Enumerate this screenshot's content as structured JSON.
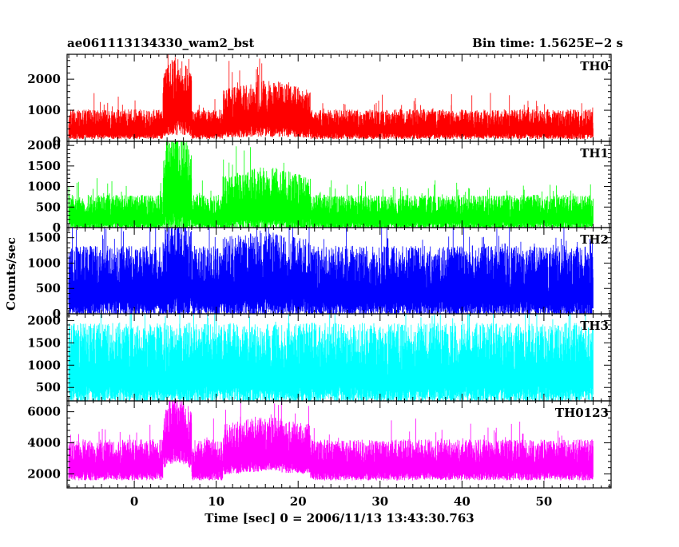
{
  "chart_data": {
    "type": "line",
    "title": "ae061113134330_wam2_bst",
    "subtitle": "Bin time: 1.5625E−2 s",
    "xlabel": "Time [sec] 0 = 2006/11/13 13:43:30.763",
    "ylabel": "Counts/sec",
    "xlim": [
      -8.2,
      58.2
    ],
    "x_ticks": [
      0,
      10,
      20,
      30,
      40,
      50
    ],
    "grid": false,
    "bin_time": 0.015625,
    "data_x_range": [
      -8,
      56
    ],
    "panels": [
      {
        "name": "TH0",
        "color": "#ff0000",
        "ylim": [
          0,
          2800
        ],
        "y_ticks": [
          0,
          1000,
          2000
        ],
        "noise": {
          "base_mean": 550,
          "base_spread": 800,
          "peak_max": 2800
        },
        "bursts": [
          {
            "x": [
              3.5,
              7.0
            ],
            "mean": 1500
          },
          {
            "x": [
              10.8,
              21.5
            ],
            "mean": 1050
          }
        ]
      },
      {
        "name": "TH1",
        "color": "#00ff00",
        "ylim": [
          0,
          2100
        ],
        "y_ticks": [
          0,
          500,
          1000,
          1500,
          2000
        ],
        "noise": {
          "base_mean": 380,
          "base_spread": 700,
          "peak_max": 2100
        },
        "bursts": [
          {
            "x": [
              3.5,
              7.0
            ],
            "mean": 1200
          },
          {
            "x": [
              10.8,
              21.5
            ],
            "mean": 700
          }
        ]
      },
      {
        "name": "TH2",
        "color": "#0000ff",
        "ylim": [
          0,
          1700
        ],
        "y_ticks": [
          0,
          500,
          1000,
          1500
        ],
        "noise": {
          "base_mean": 650,
          "base_spread": 1150,
          "peak_max": 1700
        },
        "bursts": [
          {
            "x": [
              3.5,
              7.0
            ],
            "mean": 900
          },
          {
            "x": [
              10.8,
              21.5
            ],
            "mean": 780
          }
        ]
      },
      {
        "name": "TH3",
        "color": "#00ffff",
        "ylim": [
          200,
          2150
        ],
        "y_ticks": [
          500,
          1000,
          1500,
          2000
        ],
        "noise": {
          "base_mean": 1050,
          "base_spread": 1500,
          "peak_max": 2150
        },
        "bursts": []
      },
      {
        "name": "TH0123",
        "color": "#ff00ff",
        "ylim": [
          1100,
          6700
        ],
        "y_ticks": [
          2000,
          4000,
          6000
        ],
        "noise": {
          "base_mean": 2900,
          "base_spread": 2200,
          "peak_max": 6700
        },
        "bursts": [
          {
            "x": [
              3.5,
              7.0
            ],
            "mean": 5000
          },
          {
            "x": [
              10.8,
              21.5
            ],
            "mean": 3900
          }
        ]
      }
    ]
  }
}
